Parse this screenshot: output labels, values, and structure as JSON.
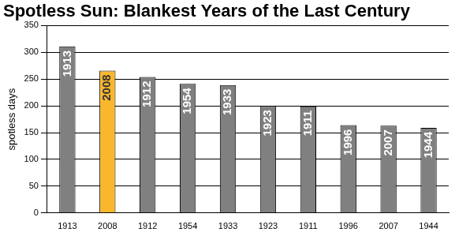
{
  "chart_data": {
    "type": "bar",
    "title": "Spotless Sun: Blankest Years of the Last Century",
    "y_label": "spotless days",
    "categories": [
      "1913",
      "2008",
      "1912",
      "1954",
      "1933",
      "1923",
      "1911",
      "1996",
      "2007",
      "1944"
    ],
    "values": [
      311,
      266,
      254,
      241,
      239,
      200,
      199,
      164,
      163,
      159
    ],
    "colors": [
      "#808080",
      "#f9b72e",
      "#808080",
      "#808080",
      "#808080",
      "#808080",
      "#808080",
      "#808080",
      "#808080",
      "#808080"
    ],
    "ylim": [
      0,
      350
    ],
    "yticks": [
      0,
      50,
      100,
      150,
      200,
      250,
      300,
      350
    ],
    "grid": true
  }
}
